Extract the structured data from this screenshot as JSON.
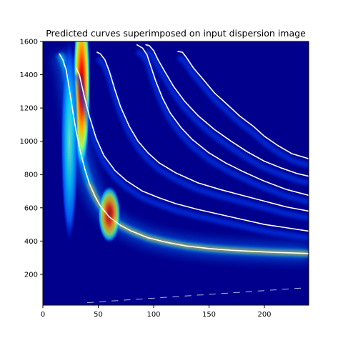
{
  "chart_data": {
    "type": "heatmap",
    "title": "Predicted curves superimposed on input dispersion image",
    "xlabel": "",
    "ylabel": "",
    "xlim": [
      0,
      240
    ],
    "ylim": [
      15,
      1600
    ],
    "x_ticks": [
      0,
      50,
      100,
      150,
      200
    ],
    "y_ticks": [
      200,
      400,
      600,
      800,
      1000,
      1200,
      1400,
      1600
    ],
    "colormap": "jet",
    "grid": false,
    "legend": "none",
    "curve_color": "#ffffff",
    "series": [
      {
        "x": [
          15,
          18,
          21,
          24,
          27,
          30,
          34,
          38,
          42,
          47,
          52,
          60,
          70,
          80,
          95,
          110,
          130,
          150,
          170,
          190,
          210,
          225,
          240
        ],
        "y": [
          1525,
          1490,
          1430,
          1310,
          1180,
          1060,
          935,
          830,
          745,
          670,
          610,
          545,
          495,
          460,
          420,
          395,
          370,
          355,
          345,
          338,
          332,
          329,
          325
        ]
      },
      {
        "x": [
          30,
          33,
          37,
          42,
          48,
          55,
          65,
          75,
          90,
          105,
          120,
          140,
          160,
          180,
          200,
          220,
          240
        ],
        "y": [
          1440,
          1400,
          1280,
          1150,
          1020,
          915,
          825,
          765,
          700,
          660,
          625,
          590,
          560,
          530,
          500,
          480,
          460
        ]
      },
      {
        "x": [
          49,
          52,
          56,
          60,
          65,
          70,
          78,
          86,
          95,
          105,
          120,
          140,
          160,
          180,
          200,
          220,
          240
        ],
        "y": [
          1535,
          1525,
          1490,
          1420,
          1310,
          1210,
          1090,
          1000,
          930,
          870,
          810,
          750,
          710,
          675,
          640,
          605,
          580
        ]
      },
      {
        "x": [
          85,
          90,
          94,
          98,
          102,
          108,
          115,
          125,
          135,
          150,
          165,
          180,
          200,
          220,
          240
        ],
        "y": [
          1580,
          1560,
          1520,
          1440,
          1360,
          1260,
          1170,
          1080,
          1010,
          930,
          870,
          820,
          760,
          710,
          675
        ]
      },
      {
        "x": [
          93,
          96,
          100,
          104,
          110,
          118,
          128,
          140,
          155,
          170,
          185,
          200,
          215,
          230,
          240
        ],
        "y": [
          1580,
          1575,
          1545,
          1490,
          1420,
          1330,
          1240,
          1155,
          1070,
          1000,
          935,
          880,
          840,
          805,
          790
        ]
      },
      {
        "x": [
          122,
          126,
          130,
          136,
          145,
          155,
          165,
          178,
          190,
          200,
          212,
          225,
          240
        ],
        "y": [
          1540,
          1535,
          1500,
          1440,
          1370,
          1290,
          1230,
          1150,
          1090,
          1030,
          975,
          925,
          895
        ]
      }
    ]
  }
}
